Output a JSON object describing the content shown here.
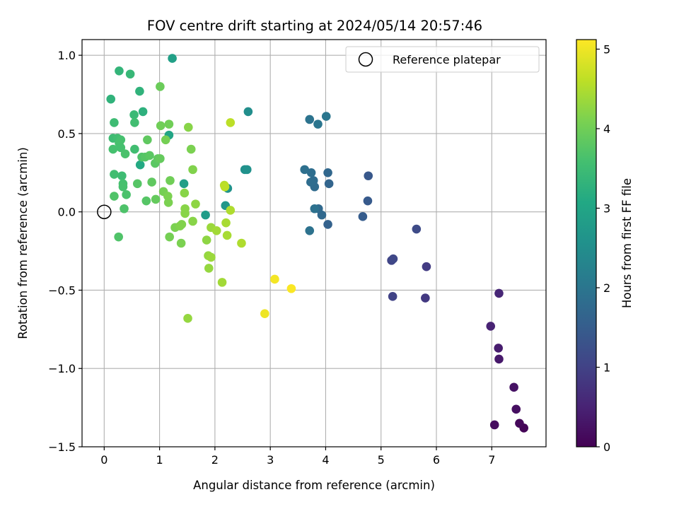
{
  "chart_data": {
    "type": "scatter",
    "title": "FOV centre drift starting at 2024/05/14 20:57:46",
    "xlabel": "Angular distance from reference (arcmin)",
    "ylabel": "Rotation from reference (arcmin)",
    "xlim": [
      -0.4,
      7.98
    ],
    "ylim": [
      -1.5,
      1.1
    ],
    "xticks": [
      "0",
      "1",
      "2",
      "3",
      "4",
      "5",
      "6",
      "7"
    ],
    "yticks": [
      "1.0",
      "0.5",
      "0.0",
      "−0.5",
      "−1.0",
      "−1.5"
    ],
    "grid": true,
    "legend": {
      "placement": "top-right",
      "entries": [
        "Reference platepar"
      ]
    },
    "reference_point": {
      "x": 0,
      "y": 0
    },
    "colorbar": {
      "label": "Hours from first FF file",
      "colormap": "viridis",
      "range": [
        0,
        5.12
      ],
      "ticks": [
        "0",
        "1",
        "2",
        "3",
        "4",
        "5"
      ]
    },
    "points": [
      {
        "x": 7.58,
        "y": -1.38,
        "h": 0.05
      },
      {
        "x": 7.5,
        "y": -1.35,
        "h": 0.1
      },
      {
        "x": 7.05,
        "y": -1.36,
        "h": 0.15
      },
      {
        "x": 7.44,
        "y": -1.26,
        "h": 0.2
      },
      {
        "x": 7.4,
        "y": -1.12,
        "h": 0.25
      },
      {
        "x": 7.13,
        "y": -0.94,
        "h": 0.35
      },
      {
        "x": 7.12,
        "y": -0.87,
        "h": 0.4
      },
      {
        "x": 6.98,
        "y": -0.73,
        "h": 0.5
      },
      {
        "x": 7.13,
        "y": -0.52,
        "h": 0.55
      },
      {
        "x": 5.8,
        "y": -0.55,
        "h": 0.85
      },
      {
        "x": 5.82,
        "y": -0.35,
        "h": 0.9
      },
      {
        "x": 5.21,
        "y": -0.54,
        "h": 1.0
      },
      {
        "x": 5.19,
        "y": -0.31,
        "h": 1.05
      },
      {
        "x": 5.22,
        "y": -0.3,
        "h": 1.1
      },
      {
        "x": 5.64,
        "y": -0.11,
        "h": 1.15
      },
      {
        "x": 4.77,
        "y": 0.23,
        "h": 1.4
      },
      {
        "x": 4.76,
        "y": 0.07,
        "h": 1.45
      },
      {
        "x": 4.67,
        "y": -0.03,
        "h": 1.5
      },
      {
        "x": 4.04,
        "y": -0.08,
        "h": 1.6
      },
      {
        "x": 4.06,
        "y": 0.18,
        "h": 1.65
      },
      {
        "x": 4.04,
        "y": 0.25,
        "h": 1.7
      },
      {
        "x": 3.93,
        "y": -0.02,
        "h": 1.72
      },
      {
        "x": 3.87,
        "y": 0.02,
        "h": 1.75
      },
      {
        "x": 3.8,
        "y": 0.16,
        "h": 1.78
      },
      {
        "x": 3.78,
        "y": 0.2,
        "h": 1.8
      },
      {
        "x": 3.73,
        "y": 0.19,
        "h": 1.82
      },
      {
        "x": 3.74,
        "y": 0.25,
        "h": 1.85
      },
      {
        "x": 3.62,
        "y": 0.27,
        "h": 1.88
      },
      {
        "x": 3.8,
        "y": 0.02,
        "h": 1.9
      },
      {
        "x": 3.71,
        "y": -0.12,
        "h": 1.92
      },
      {
        "x": 3.71,
        "y": 0.59,
        "h": 1.95
      },
      {
        "x": 3.86,
        "y": 0.56,
        "h": 1.98
      },
      {
        "x": 4.01,
        "y": 0.61,
        "h": 2.0
      },
      {
        "x": 2.6,
        "y": 0.64,
        "h": 2.5
      },
      {
        "x": 2.54,
        "y": 0.27,
        "h": 2.55
      },
      {
        "x": 2.58,
        "y": 0.27,
        "h": 2.58
      },
      {
        "x": 2.23,
        "y": 0.15,
        "h": 2.6
      },
      {
        "x": 2.19,
        "y": 0.04,
        "h": 2.7
      },
      {
        "x": 1.83,
        "y": -0.02,
        "h": 2.8
      },
      {
        "x": 1.44,
        "y": 0.18,
        "h": 2.85
      },
      {
        "x": 1.23,
        "y": 0.98,
        "h": 2.9
      },
      {
        "x": 1.17,
        "y": 0.49,
        "h": 3.0
      },
      {
        "x": 0.12,
        "y": 0.72,
        "h": 3.3
      },
      {
        "x": 0.27,
        "y": 0.9,
        "h": 3.35
      },
      {
        "x": 0.47,
        "y": 0.88,
        "h": 3.4
      },
      {
        "x": 0.64,
        "y": 0.77,
        "h": 3.3
      },
      {
        "x": 0.7,
        "y": 0.64,
        "h": 3.25
      },
      {
        "x": 0.54,
        "y": 0.62,
        "h": 3.45
      },
      {
        "x": 0.65,
        "y": 0.3,
        "h": 3.1
      },
      {
        "x": 0.18,
        "y": 0.57,
        "h": 3.5
      },
      {
        "x": 0.55,
        "y": 0.57,
        "h": 3.55
      },
      {
        "x": 0.16,
        "y": 0.47,
        "h": 3.5
      },
      {
        "x": 0.24,
        "y": 0.47,
        "h": 3.55
      },
      {
        "x": 0.3,
        "y": 0.46,
        "h": 3.6
      },
      {
        "x": 0.27,
        "y": 0.44,
        "h": 3.62
      },
      {
        "x": 0.16,
        "y": 0.4,
        "h": 3.6
      },
      {
        "x": 0.3,
        "y": 0.41,
        "h": 3.6
      },
      {
        "x": 0.38,
        "y": 0.37,
        "h": 3.65
      },
      {
        "x": 0.55,
        "y": 0.4,
        "h": 3.55
      },
      {
        "x": 0.32,
        "y": 0.23,
        "h": 3.5
      },
      {
        "x": 0.18,
        "y": 0.24,
        "h": 3.55
      },
      {
        "x": 0.34,
        "y": 0.18,
        "h": 3.6
      },
      {
        "x": 0.34,
        "y": 0.16,
        "h": 3.62
      },
      {
        "x": 0.4,
        "y": 0.11,
        "h": 3.65
      },
      {
        "x": 0.18,
        "y": 0.1,
        "h": 3.7
      },
      {
        "x": 0.36,
        "y": 0.02,
        "h": 3.68
      },
      {
        "x": 0.26,
        "y": -0.16,
        "h": 3.7
      },
      {
        "x": 0.6,
        "y": 0.18,
        "h": 3.75
      },
      {
        "x": 0.68,
        "y": 0.35,
        "h": 3.7
      },
      {
        "x": 0.74,
        "y": 0.35,
        "h": 3.75
      },
      {
        "x": 0.82,
        "y": 0.36,
        "h": 3.8
      },
      {
        "x": 0.78,
        "y": 0.46,
        "h": 3.85
      },
      {
        "x": 0.92,
        "y": 0.31,
        "h": 3.8
      },
      {
        "x": 0.97,
        "y": 0.34,
        "h": 3.85
      },
      {
        "x": 1.01,
        "y": 0.34,
        "h": 3.9
      },
      {
        "x": 0.86,
        "y": 0.19,
        "h": 3.85
      },
      {
        "x": 0.76,
        "y": 0.07,
        "h": 3.75
      },
      {
        "x": 0.93,
        "y": 0.08,
        "h": 3.9
      },
      {
        "x": 1.01,
        "y": 0.8,
        "h": 3.95
      },
      {
        "x": 1.02,
        "y": 0.55,
        "h": 4.0
      },
      {
        "x": 1.17,
        "y": 0.56,
        "h": 4.0
      },
      {
        "x": 1.11,
        "y": 0.46,
        "h": 4.05
      },
      {
        "x": 1.07,
        "y": 0.13,
        "h": 4.05
      },
      {
        "x": 1.15,
        "y": 0.1,
        "h": 4.1
      },
      {
        "x": 1.19,
        "y": 0.2,
        "h": 4.0
      },
      {
        "x": 1.16,
        "y": 0.06,
        "h": 4.1
      },
      {
        "x": 1.18,
        "y": -0.16,
        "h": 4.05
      },
      {
        "x": 1.28,
        "y": -0.1,
        "h": 4.1
      },
      {
        "x": 1.37,
        "y": -0.09,
        "h": 4.15
      },
      {
        "x": 1.4,
        "y": -0.08,
        "h": 4.15
      },
      {
        "x": 1.39,
        "y": -0.2,
        "h": 4.1
      },
      {
        "x": 1.45,
        "y": 0.12,
        "h": 4.2
      },
      {
        "x": 1.46,
        "y": 0.02,
        "h": 4.2
      },
      {
        "x": 1.46,
        "y": -0.01,
        "h": 4.2
      },
      {
        "x": 1.6,
        "y": -0.06,
        "h": 4.2
      },
      {
        "x": 1.6,
        "y": 0.27,
        "h": 4.15
      },
      {
        "x": 1.57,
        "y": 0.4,
        "h": 4.1
      },
      {
        "x": 1.52,
        "y": 0.54,
        "h": 4.2
      },
      {
        "x": 1.65,
        "y": 0.05,
        "h": 4.25
      },
      {
        "x": 1.85,
        "y": -0.18,
        "h": 4.25
      },
      {
        "x": 1.88,
        "y": -0.28,
        "h": 4.3
      },
      {
        "x": 1.89,
        "y": -0.36,
        "h": 4.3
      },
      {
        "x": 1.93,
        "y": -0.29,
        "h": 4.35
      },
      {
        "x": 1.93,
        "y": -0.1,
        "h": 4.35
      },
      {
        "x": 2.03,
        "y": -0.12,
        "h": 4.4
      },
      {
        "x": 2.13,
        "y": -0.45,
        "h": 4.4
      },
      {
        "x": 2.2,
        "y": -0.07,
        "h": 4.45
      },
      {
        "x": 2.22,
        "y": -0.15,
        "h": 4.45
      },
      {
        "x": 2.28,
        "y": 0.01,
        "h": 4.5
      },
      {
        "x": 2.48,
        "y": -0.2,
        "h": 4.5
      },
      {
        "x": 2.17,
        "y": 0.17,
        "h": 4.55
      },
      {
        "x": 2.18,
        "y": 0.16,
        "h": 4.6
      },
      {
        "x": 2.28,
        "y": 0.57,
        "h": 4.6
      },
      {
        "x": 1.51,
        "y": -0.68,
        "h": 4.3
      },
      {
        "x": 2.9,
        "y": -0.65,
        "h": 5.0
      },
      {
        "x": 3.08,
        "y": -0.43,
        "h": 5.05
      },
      {
        "x": 3.38,
        "y": -0.49,
        "h": 5.1
      }
    ]
  }
}
